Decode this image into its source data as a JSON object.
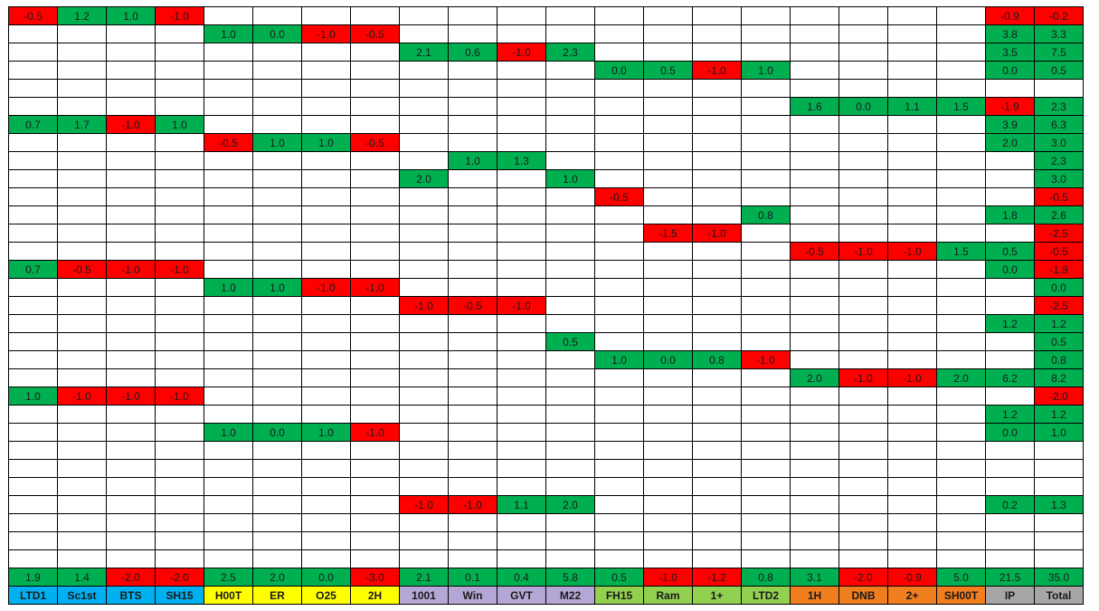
{
  "colors": {
    "positive": "#00b050",
    "negative": "#ff0000",
    "blank": "#ffffff",
    "group_blue": "#00b0f0",
    "group_yellow": "#ffff00",
    "group_purple": "#b4a7d6",
    "group_green": "#92d050",
    "group_orange": "#f07d1e",
    "group_gray": "#a6a6a6"
  },
  "headers": [
    {
      "label": "LTD1",
      "color": "group_blue"
    },
    {
      "label": "Sc1st",
      "color": "group_blue"
    },
    {
      "label": "BTS",
      "color": "group_blue"
    },
    {
      "label": "SH15",
      "color": "group_blue"
    },
    {
      "label": "H00T",
      "color": "group_yellow"
    },
    {
      "label": "ER",
      "color": "group_yellow"
    },
    {
      "label": "O25",
      "color": "group_yellow"
    },
    {
      "label": "2H",
      "color": "group_yellow"
    },
    {
      "label": "1001",
      "color": "group_purple"
    },
    {
      "label": "Win",
      "color": "group_purple"
    },
    {
      "label": "GVT",
      "color": "group_purple"
    },
    {
      "label": "M22",
      "color": "group_purple"
    },
    {
      "label": "FH15",
      "color": "group_green"
    },
    {
      "label": "Ram",
      "color": "group_green"
    },
    {
      "label": "1+",
      "color": "group_green"
    },
    {
      "label": "LTD2",
      "color": "group_green"
    },
    {
      "label": "1H",
      "color": "group_orange"
    },
    {
      "label": "DNB",
      "color": "group_orange"
    },
    {
      "label": "2+",
      "color": "group_orange"
    },
    {
      "label": "SH00T",
      "color": "group_orange"
    },
    {
      "label": "IP",
      "color": "group_gray"
    },
    {
      "label": "Total",
      "color": "group_gray"
    }
  ],
  "rows": [
    [
      "-0.5",
      "1.2",
      "1.0",
      "-1.0",
      "",
      "",
      "",
      "",
      "",
      "",
      "",
      "",
      "",
      "",
      "",
      "",
      "",
      "",
      "",
      "",
      "-0.9",
      "-0.2"
    ],
    [
      "",
      "",
      "",
      "",
      "1.0",
      "0.0",
      "-1.0",
      "-0.5",
      "",
      "",
      "",
      "",
      "",
      "",
      "",
      "",
      "",
      "",
      "",
      "",
      "3.8",
      "3.3"
    ],
    [
      "",
      "",
      "",
      "",
      "",
      "",
      "",
      "",
      "2.1",
      "0.6",
      "-1.0",
      "2.3",
      "",
      "",
      "",
      "",
      "",
      "",
      "",
      "",
      "3.5",
      "7.5"
    ],
    [
      "",
      "",
      "",
      "",
      "",
      "",
      "",
      "",
      "",
      "",
      "",
      "",
      "0.0",
      "0.5",
      "-1.0",
      "1.0",
      "",
      "",
      "",
      "",
      "0.0",
      "0.5"
    ],
    [
      "",
      "",
      "",
      "",
      "",
      "",
      "",
      "",
      "",
      "",
      "",
      "",
      "",
      "",
      "",
      "",
      "",
      "",
      "",
      "",
      "",
      ""
    ],
    [
      "",
      "",
      "",
      "",
      "",
      "",
      "",
      "",
      "",
      "",
      "",
      "",
      "",
      "",
      "",
      "",
      "1.6",
      "0.0",
      "1.1",
      "1.5",
      "-1.9",
      "2.3"
    ],
    [
      "0.7",
      "1.7",
      "-1.0",
      "1.0",
      "",
      "",
      "",
      "",
      "",
      "",
      "",
      "",
      "",
      "",
      "",
      "",
      "",
      "",
      "",
      "",
      "3.9",
      "6.3"
    ],
    [
      "",
      "",
      "",
      "",
      "-0.5",
      "1.0",
      "1.0",
      "-0.5",
      "",
      "",
      "",
      "",
      "",
      "",
      "",
      "",
      "",
      "",
      "",
      "",
      "2.0",
      "3.0"
    ],
    [
      "",
      "",
      "",
      "",
      "",
      "",
      "",
      "",
      "",
      "1.0",
      "1.3",
      "",
      "",
      "",
      "",
      "",
      "",
      "",
      "",
      "",
      "",
      "2.3"
    ],
    [
      "",
      "",
      "",
      "",
      "",
      "",
      "",
      "",
      "2.0",
      "",
      "",
      "1.0",
      "",
      "",
      "",
      "",
      "",
      "",
      "",
      "",
      "",
      "3.0"
    ],
    [
      "",
      "",
      "",
      "",
      "",
      "",
      "",
      "",
      "",
      "",
      "",
      "",
      "-0.5",
      "",
      "",
      "",
      "",
      "",
      "",
      "",
      "",
      "-0.5"
    ],
    [
      "",
      "",
      "",
      "",
      "",
      "",
      "",
      "",
      "",
      "",
      "",
      "",
      "",
      "",
      "",
      "0.8",
      "",
      "",
      "",
      "",
      "1.8",
      "2.6"
    ],
    [
      "",
      "",
      "",
      "",
      "",
      "",
      "",
      "",
      "",
      "",
      "",
      "",
      "",
      "-1.5",
      "-1.0",
      "",
      "",
      "",
      "",
      "",
      "",
      "-2.5"
    ],
    [
      "",
      "",
      "",
      "",
      "",
      "",
      "",
      "",
      "",
      "",
      "",
      "",
      "",
      "",
      "",
      "",
      "-0.5",
      "-1.0",
      "-1.0",
      "1.5",
      "0.5",
      "-0.5"
    ],
    [
      "0.7",
      "-0.5",
      "-1.0",
      "-1.0",
      "",
      "",
      "",
      "",
      "",
      "",
      "",
      "",
      "",
      "",
      "",
      "",
      "",
      "",
      "",
      "",
      "0.0",
      "-1.8"
    ],
    [
      "",
      "",
      "",
      "",
      "1.0",
      "1.0",
      "-1.0",
      "-1.0",
      "",
      "",
      "",
      "",
      "",
      "",
      "",
      "",
      "",
      "",
      "",
      "",
      "",
      "0.0"
    ],
    [
      "",
      "",
      "",
      "",
      "",
      "",
      "",
      "",
      "-1.0",
      "-0.5",
      "-1.0",
      "",
      "",
      "",
      "",
      "",
      "",
      "",
      "",
      "",
      "",
      "-2.5"
    ],
    [
      "",
      "",
      "",
      "",
      "",
      "",
      "",
      "",
      "",
      "",
      "",
      "",
      "",
      "",
      "",
      "",
      "",
      "",
      "",
      "",
      "1.2",
      "1.2"
    ],
    [
      "",
      "",
      "",
      "",
      "",
      "",
      "",
      "",
      "",
      "",
      "",
      "0.5",
      "",
      "",
      "",
      "",
      "",
      "",
      "",
      "",
      "",
      "0.5"
    ],
    [
      "",
      "",
      "",
      "",
      "",
      "",
      "",
      "",
      "",
      "",
      "",
      "",
      "1.0",
      "0.0",
      "0.8",
      "-1.0",
      "",
      "",
      "",
      "",
      "",
      "0.8"
    ],
    [
      "",
      "",
      "",
      "",
      "",
      "",
      "",
      "",
      "",
      "",
      "",
      "",
      "",
      "",
      "",
      "",
      "2.0",
      "-1.0",
      "-1.0",
      "2.0",
      "6.2",
      "8.2"
    ],
    [
      "1.0",
      "-1.0",
      "-1.0",
      "-1.0",
      "",
      "",
      "",
      "",
      "",
      "",
      "",
      "",
      "",
      "",
      "",
      "",
      "",
      "",
      "",
      "",
      "",
      "-2.0"
    ],
    [
      "",
      "",
      "",
      "",
      "",
      "",
      "",
      "",
      "",
      "",
      "",
      "",
      "",
      "",
      "",
      "",
      "",
      "",
      "",
      "",
      "1.2",
      "1.2"
    ],
    [
      "",
      "",
      "",
      "",
      "1.0",
      "0.0",
      "1.0",
      "-1.0",
      "",
      "",
      "",
      "",
      "",
      "",
      "",
      "",
      "",
      "",
      "",
      "",
      "0.0",
      "1.0"
    ],
    [
      "",
      "",
      "",
      "",
      "",
      "",
      "",
      "",
      "",
      "",
      "",
      "",
      "",
      "",
      "",
      "",
      "",
      "",
      "",
      "",
      "",
      ""
    ],
    [
      "",
      "",
      "",
      "",
      "",
      "",
      "",
      "",
      "",
      "",
      "",
      "",
      "",
      "",
      "",
      "",
      "",
      "",
      "",
      "",
      "",
      ""
    ],
    [
      "",
      "",
      "",
      "",
      "",
      "",
      "",
      "",
      "",
      "",
      "",
      "",
      "",
      "",
      "",
      "",
      "",
      "",
      "",
      "",
      "",
      ""
    ],
    [
      "",
      "",
      "",
      "",
      "",
      "",
      "",
      "",
      "-1.0",
      "-1.0",
      "1.1",
      "2.0",
      "",
      "",
      "",
      "",
      "",
      "",
      "",
      "",
      "0.2",
      "1.3"
    ],
    [
      "",
      "",
      "",
      "",
      "",
      "",
      "",
      "",
      "",
      "",
      "",
      "",
      "",
      "",
      "",
      "",
      "",
      "",
      "",
      "",
      "",
      ""
    ],
    [
      "",
      "",
      "",
      "",
      "",
      "",
      "",
      "",
      "",
      "",
      "",
      "",
      "",
      "",
      "",
      "",
      "",
      "",
      "",
      "",
      "",
      ""
    ],
    [
      "",
      "",
      "",
      "",
      "",
      "",
      "",
      "",
      "",
      "",
      "",
      "",
      "",
      "",
      "",
      "",
      "",
      "",
      "",
      "",
      "",
      ""
    ]
  ],
  "totals": [
    "1.9",
    "1.4",
    "-2.0",
    "-2.0",
    "2.5",
    "2.0",
    "0.0",
    "-3.0",
    "2.1",
    "0.1",
    "0.4",
    "5.8",
    "0.5",
    "-1.0",
    "-1.2",
    "0.8",
    "3.1",
    "-2.0",
    "-0.9",
    "5.0",
    "21.5",
    "35.0"
  ]
}
